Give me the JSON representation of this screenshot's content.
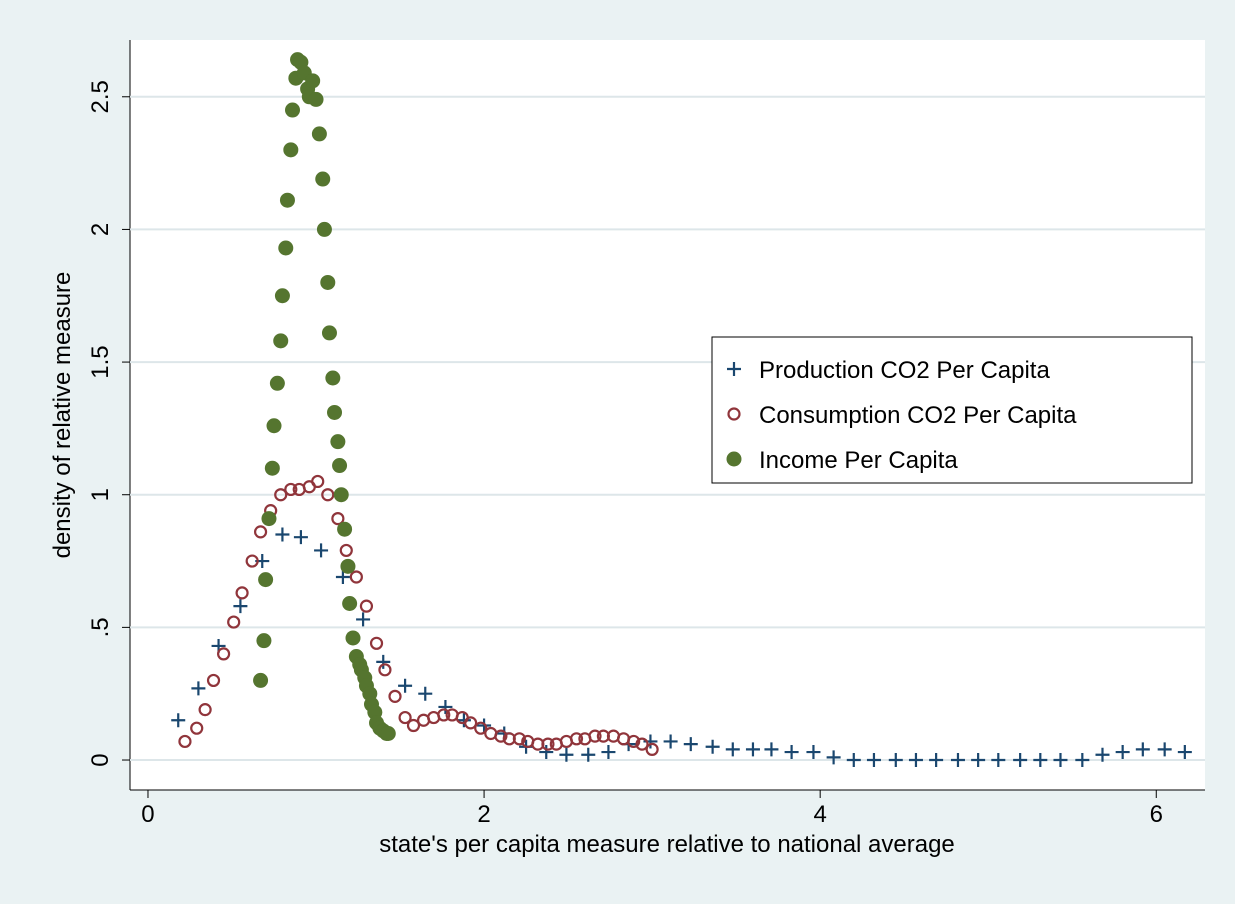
{
  "chart_data": {
    "type": "scatter",
    "xlabel": "state's per capita measure relative to national average",
    "ylabel": "density of relative measure",
    "xlim": [
      -0.107,
      6.29
    ],
    "ylim": [
      -0.113,
      2.714
    ],
    "xticks": [
      0,
      2,
      4,
      6
    ],
    "yticks": [
      0,
      {
        "value": 0.5,
        "label": ".5"
      },
      1,
      1.5,
      2,
      2.5
    ],
    "grid": true,
    "legend": "right",
    "series": [
      {
        "name": "Production CO2 Per Capita",
        "color": "#1a476f",
        "marker": "plus",
        "x": [
          0.18,
          0.3,
          0.42,
          0.55,
          0.68,
          0.8,
          0.91,
          1.03,
          1.16,
          1.28,
          1.4,
          1.53,
          1.65,
          1.77,
          1.88,
          2.0,
          2.12,
          2.25,
          2.37,
          2.49,
          2.62,
          2.74,
          2.86,
          2.99,
          3.11,
          3.23,
          3.36,
          3.48,
          3.6,
          3.71,
          3.83,
          3.96,
          4.08,
          4.2,
          4.32,
          4.45,
          4.57,
          4.69,
          4.82,
          4.94,
          5.06,
          5.19,
          5.31,
          5.43,
          5.56,
          5.68,
          5.8,
          5.92,
          6.05,
          6.17
        ],
        "values": [
          0.15,
          0.27,
          0.43,
          0.58,
          0.75,
          0.85,
          0.84,
          0.79,
          0.69,
          0.53,
          0.37,
          0.28,
          0.25,
          0.2,
          0.15,
          0.13,
          0.1,
          0.05,
          0.03,
          0.02,
          0.02,
          0.03,
          0.06,
          0.07,
          0.07,
          0.06,
          0.05,
          0.04,
          0.04,
          0.04,
          0.03,
          0.03,
          0.01,
          0,
          0,
          0,
          0,
          0,
          0,
          0,
          0,
          0,
          0,
          0,
          0,
          0.02,
          0.03,
          0.04,
          0.04,
          0.03
        ]
      },
      {
        "name": "Consumption CO2 Per Capita",
        "color": "#90353b",
        "marker": "hollow",
        "x": [
          0.22,
          0.29,
          0.34,
          0.39,
          0.45,
          0.51,
          0.56,
          0.62,
          0.67,
          0.73,
          0.79,
          0.85,
          0.9,
          0.96,
          1.01,
          1.07,
          1.13,
          1.18,
          1.24,
          1.3,
          1.36,
          1.41,
          1.47,
          1.53,
          1.58,
          1.64,
          1.7,
          1.76,
          1.81,
          1.87,
          1.92,
          1.98,
          2.04,
          2.1,
          2.15,
          2.21,
          2.26,
          2.32,
          2.38,
          2.43,
          2.49,
          2.55,
          2.6,
          2.66,
          2.71,
          2.77,
          2.83,
          2.89,
          2.94,
          3.0
        ],
        "values": [
          0.07,
          0.12,
          0.19,
          0.3,
          0.4,
          0.52,
          0.63,
          0.75,
          0.86,
          0.94,
          1.0,
          1.02,
          1.02,
          1.03,
          1.05,
          1.0,
          0.91,
          0.79,
          0.69,
          0.58,
          0.44,
          0.34,
          0.24,
          0.16,
          0.13,
          0.15,
          0.16,
          0.17,
          0.17,
          0.16,
          0.14,
          0.12,
          0.1,
          0.09,
          0.08,
          0.08,
          0.07,
          0.06,
          0.06,
          0.06,
          0.07,
          0.08,
          0.08,
          0.09,
          0.09,
          0.09,
          0.08,
          0.07,
          0.06,
          0.04
        ]
      },
      {
        "name": "Income Per Capita",
        "color": "#55752f",
        "marker": "filled",
        "x": [
          0.67,
          0.69,
          0.7,
          0.72,
          0.74,
          0.75,
          0.77,
          0.79,
          0.8,
          0.82,
          0.83,
          0.85,
          0.86,
          0.88,
          0.89,
          0.91,
          0.93,
          0.95,
          0.96,
          0.98,
          1.0,
          1.02,
          1.04,
          1.05,
          1.07,
          1.08,
          1.1,
          1.11,
          1.13,
          1.14,
          1.15,
          1.17,
          1.19,
          1.2,
          1.22,
          1.24,
          1.26,
          1.27,
          1.29,
          1.3,
          1.32,
          1.33,
          1.35,
          1.36,
          1.38,
          1.4,
          1.42,
          1.43
        ],
        "values": [
          0.3,
          0.45,
          0.68,
          0.91,
          1.1,
          1.26,
          1.42,
          1.58,
          1.75,
          1.93,
          2.11,
          2.3,
          2.45,
          2.57,
          2.64,
          2.63,
          2.59,
          2.53,
          2.5,
          2.56,
          2.49,
          2.36,
          2.19,
          2.0,
          1.8,
          1.61,
          1.44,
          1.31,
          1.2,
          1.11,
          1.0,
          0.87,
          0.73,
          0.59,
          0.46,
          0.39,
          0.36,
          0.34,
          0.31,
          0.28,
          0.25,
          0.21,
          0.18,
          0.14,
          0.12,
          0.11,
          0.1,
          0.1
        ]
      }
    ]
  }
}
